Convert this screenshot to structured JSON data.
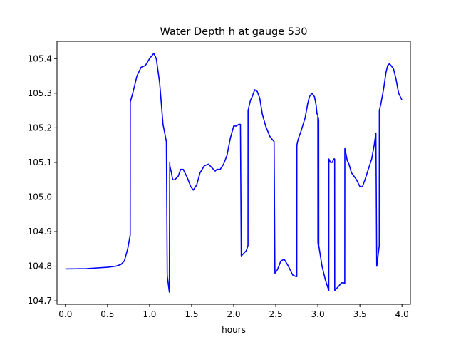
{
  "chart_data": {
    "type": "line",
    "title": "Water Depth h at gauge 530",
    "xlabel": "hours",
    "ylabel": "",
    "xlim": [
      -0.1,
      4.1
    ],
    "ylim": [
      104.69,
      105.45
    ],
    "xticks": [
      0.0,
      0.5,
      1.0,
      1.5,
      2.0,
      2.5,
      3.0,
      3.5,
      4.0
    ],
    "xtick_labels": [
      "0.0",
      "0.5",
      "1.0",
      "1.5",
      "2.0",
      "2.5",
      "3.0",
      "3.5",
      "4.0"
    ],
    "yticks": [
      104.7,
      104.8,
      104.9,
      105.0,
      105.1,
      105.2,
      105.3,
      105.4
    ],
    "ytick_labels": [
      "104.7",
      "104.8",
      "104.9",
      "105.0",
      "105.1",
      "105.2",
      "105.3",
      "105.4"
    ],
    "grid": false,
    "series": [
      {
        "color": "#0000ff",
        "x": [
          0.0,
          0.25,
          0.5,
          0.6,
          0.66,
          0.7,
          0.74,
          0.77,
          0.771,
          0.8,
          0.85,
          0.9,
          0.95,
          1.0,
          1.05,
          1.08,
          1.12,
          1.16,
          1.2,
          1.21,
          1.211,
          1.235,
          1.24,
          1.241,
          1.26,
          1.275,
          1.3,
          1.34,
          1.37,
          1.4,
          1.45,
          1.49,
          1.52,
          1.56,
          1.6,
          1.65,
          1.7,
          1.74,
          1.78,
          1.8,
          1.84,
          1.88,
          1.92,
          1.96,
          2.0,
          2.03,
          2.06,
          2.08,
          2.09,
          2.091,
          2.15,
          2.17,
          2.171,
          2.18,
          2.2,
          2.22,
          2.25,
          2.28,
          2.31,
          2.34,
          2.38,
          2.43,
          2.48,
          2.49,
          2.491,
          2.52,
          2.56,
          2.6,
          2.65,
          2.7,
          2.74,
          2.75,
          2.751,
          2.76,
          2.77,
          2.8,
          2.85,
          2.88,
          2.9,
          2.93,
          2.96,
          2.98,
          2.99,
          3.0,
          3.001,
          3.005,
          3.006,
          3.01,
          3.011,
          3.05,
          3.09,
          3.13,
          3.131,
          3.15,
          3.17,
          3.19,
          3.2,
          3.201,
          3.24,
          3.28,
          3.31,
          3.32,
          3.321,
          3.33,
          3.35,
          3.37,
          3.4,
          3.43,
          3.46,
          3.5,
          3.53,
          3.56,
          3.6,
          3.64,
          3.67,
          3.69,
          3.7,
          3.701,
          3.73,
          3.731,
          3.75,
          3.78,
          3.81,
          3.83,
          3.85,
          3.87,
          3.9,
          3.93,
          3.96,
          4.0
        ],
        "y": [
          104.792,
          104.793,
          104.797,
          104.8,
          104.805,
          104.815,
          104.85,
          104.89,
          105.275,
          105.3,
          105.35,
          105.375,
          105.38,
          105.4,
          105.415,
          105.4,
          105.33,
          105.21,
          105.16,
          104.78,
          104.77,
          104.725,
          105.1,
          105.09,
          105.07,
          105.05,
          105.05,
          105.06,
          105.08,
          105.08,
          105.055,
          105.03,
          105.02,
          105.035,
          105.07,
          105.09,
          105.095,
          105.085,
          105.075,
          105.08,
          105.08,
          105.095,
          105.12,
          105.17,
          105.205,
          105.205,
          105.21,
          105.21,
          104.83,
          104.83,
          104.845,
          104.86,
          105.25,
          105.26,
          105.28,
          105.29,
          105.31,
          105.305,
          105.285,
          105.24,
          105.205,
          105.175,
          105.16,
          104.78,
          104.78,
          104.79,
          104.815,
          104.82,
          104.8,
          104.775,
          104.77,
          104.77,
          105.15,
          105.16,
          105.17,
          105.19,
          105.23,
          105.27,
          105.29,
          105.3,
          105.29,
          105.265,
          105.24,
          105.24,
          104.87,
          104.86,
          105.23,
          105.22,
          104.86,
          104.8,
          104.76,
          104.73,
          105.11,
          105.1,
          105.1,
          105.11,
          105.11,
          104.73,
          104.74,
          104.752,
          104.752,
          104.75,
          105.14,
          105.13,
          105.105,
          105.095,
          105.07,
          105.06,
          105.05,
          105.03,
          105.03,
          105.05,
          105.08,
          105.11,
          105.15,
          105.185,
          104.8,
          104.8,
          104.86,
          105.25,
          105.27,
          105.31,
          105.36,
          105.38,
          105.385,
          105.38,
          105.37,
          105.34,
          105.3,
          105.28
        ]
      }
    ]
  }
}
